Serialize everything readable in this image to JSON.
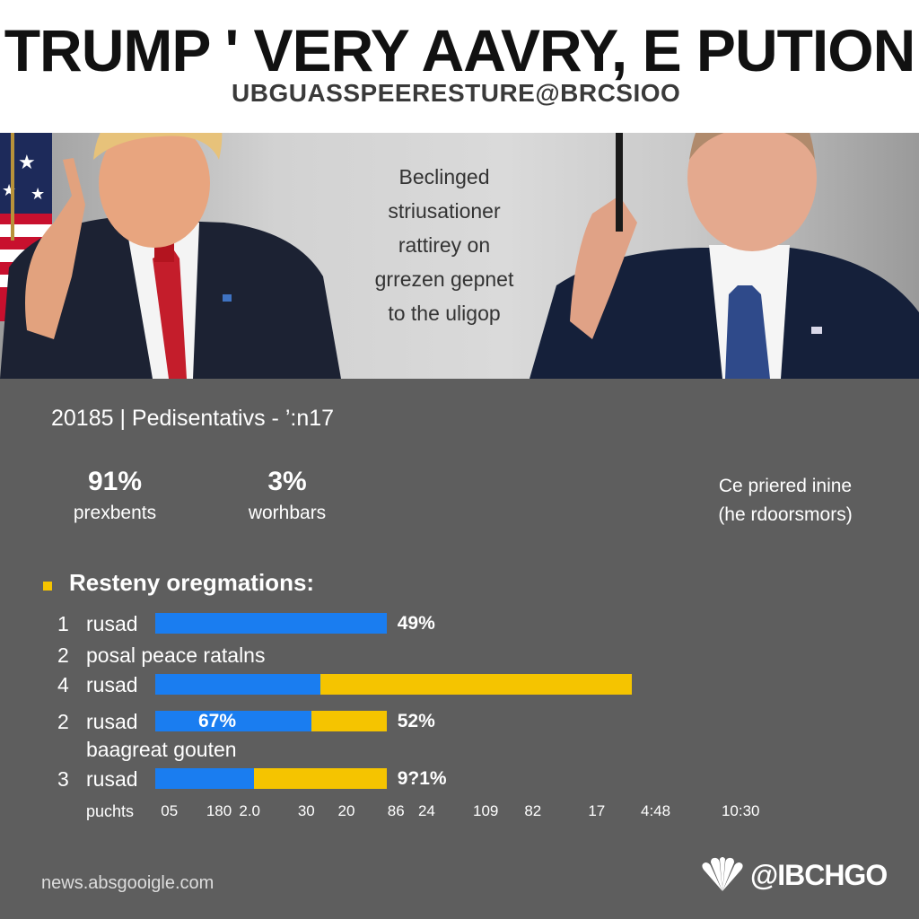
{
  "header": {
    "headline": "TRUMP ' VERY AAVRY, E PUTION",
    "subheadline": "UBGUASSPEERESTURE@BRCSIOO"
  },
  "caption": {
    "lines": [
      "Beclinged",
      "striusationer",
      "rattirey on",
      "grrezen gepnet",
      "to the uligop"
    ]
  },
  "stats": {
    "line": "20185 | Pedisentativs - ’:n17",
    "items": [
      {
        "value": "91%",
        "label": "prexbents"
      },
      {
        "value": "3%",
        "label": "worhbars"
      }
    ],
    "side_note": [
      "Ce priered inine",
      "(he rdoorsmors)"
    ]
  },
  "section_title": "Resteny oregmations:",
  "chart_data": {
    "type": "bar",
    "orientation": "horizontal",
    "stacked": true,
    "rows": [
      {
        "rank": "1",
        "label": "rusad",
        "segments": [
          {
            "color": "#1a7df0",
            "value": 49
          }
        ],
        "value_label": "49%"
      },
      {
        "rank": "2",
        "label": "posal peace ratalns",
        "segments": [],
        "value_label": ""
      },
      {
        "rank": "4",
        "label": "rusad",
        "segments": [
          {
            "color": "#1a7df0",
            "value": 35
          },
          {
            "color": "#f5c400",
            "value": 66
          }
        ],
        "value_label": ""
      },
      {
        "rank": "2",
        "label": "rusad",
        "segments": [
          {
            "color": "#1a7df0",
            "value": 33
          },
          {
            "color": "#f5c400",
            "value": 16
          }
        ],
        "value_label": "52%",
        "inner_label": "67%"
      },
      {
        "rank": "",
        "label": "baagreat gouten",
        "segments": [],
        "value_label": ""
      },
      {
        "rank": "3",
        "label": "rusad",
        "segments": [
          {
            "color": "#1a7df0",
            "value": 21
          },
          {
            "color": "#f5c400",
            "value": 28
          }
        ],
        "value_label": "9?1%"
      }
    ],
    "xlim": [
      0,
      100
    ],
    "axis_title": "puchts",
    "ticks": [
      {
        "label": "05",
        "pos": 3
      },
      {
        "label": "180",
        "pos": 13.5
      },
      {
        "label": "2.0",
        "pos": 20
      },
      {
        "label": "30",
        "pos": 32
      },
      {
        "label": "20",
        "pos": 40.5
      },
      {
        "label": "86",
        "pos": 51
      },
      {
        "label": "24",
        "pos": 57.5
      },
      {
        "label": "109",
        "pos": 70
      },
      {
        "label": "82",
        "pos": 80
      },
      {
        "label": "17",
        "pos": 93.5
      },
      {
        "label": "4:48",
        "pos": 106
      },
      {
        "label": "10:30",
        "pos": 124
      }
    ],
    "colors": {
      "blue": "#1a7df0",
      "yellow": "#f5c400"
    }
  },
  "footer": {
    "source": "news.absgooigle.com",
    "logo_text": "@IBCHGO",
    "logo_icon": "peacock-icon"
  }
}
